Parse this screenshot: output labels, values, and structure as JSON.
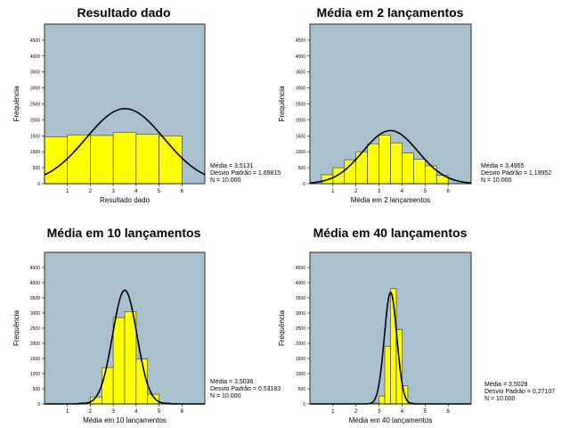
{
  "colors": {
    "plot_bg": "#a9c1cf",
    "bar_fill": "#ffff00",
    "bar_edge": "#333333",
    "curve": "#000000"
  },
  "chart_data": [
    {
      "type": "bar",
      "title": "Resultado dado",
      "xlabel": "Resultado dado",
      "ylabel": "Frequência",
      "ylim": [
        0,
        5000
      ],
      "yticks": [
        "0",
        "500",
        "1000",
        "1500",
        "2000",
        "2500",
        "3000",
        "3500",
        "4000",
        "4500"
      ],
      "xlim": [
        0,
        7
      ],
      "xticks": [
        "1",
        "2",
        "3",
        "4",
        "5",
        "6"
      ],
      "bins": [
        {
          "x0": 0.0,
          "x1": 1.0,
          "value": 1470
        },
        {
          "x0": 1.0,
          "x1": 2.0,
          "value": 1530
        },
        {
          "x0": 2.0,
          "x1": 3.0,
          "value": 1510
        },
        {
          "x0": 3.0,
          "x1": 4.0,
          "value": 1610
        },
        {
          "x0": 4.0,
          "x1": 5.0,
          "value": 1550
        },
        {
          "x0": 5.0,
          "x1": 6.0,
          "value": 1500
        }
      ],
      "normal_curve": {
        "mean": 3.5131,
        "sd": 1.69815
      },
      "stats": [
        "Média = 3,5131",
        "Desvio Padrão = 1,69815",
        "N = 10.000"
      ]
    },
    {
      "type": "bar",
      "title": "Média em 2 lançamentos",
      "xlabel": "Média em 2 lançamentos",
      "ylabel": "Frequência",
      "ylim": [
        0,
        5000
      ],
      "yticks": [
        "0",
        "500",
        "1000",
        "1500",
        "2000",
        "2500",
        "3000",
        "3500",
        "4000",
        "4500"
      ],
      "xlim": [
        0,
        7
      ],
      "xticks": [
        "1",
        "2",
        "3",
        "4",
        "5",
        "6"
      ],
      "bins": [
        {
          "x0": 0.5,
          "x1": 1.0,
          "value": 280
        },
        {
          "x0": 1.0,
          "x1": 1.5,
          "value": 500
        },
        {
          "x0": 1.5,
          "x1": 2.0,
          "value": 750
        },
        {
          "x0": 2.0,
          "x1": 2.5,
          "value": 1000
        },
        {
          "x0": 2.5,
          "x1": 3.0,
          "value": 1250
        },
        {
          "x0": 3.0,
          "x1": 3.5,
          "value": 1520
        },
        {
          "x0": 3.5,
          "x1": 4.0,
          "value": 1280
        },
        {
          "x0": 4.0,
          "x1": 4.5,
          "value": 960
        },
        {
          "x0": 4.5,
          "x1": 5.0,
          "value": 760
        },
        {
          "x0": 5.0,
          "x1": 5.5,
          "value": 560
        },
        {
          "x0": 5.5,
          "x1": 6.0,
          "value": 260
        }
      ],
      "normal_curve": {
        "mean": 3.4955,
        "sd": 1.19952
      },
      "stats": [
        "Média = 3,4955",
        "Desvio Padrão = 1,19952",
        "N = 10.000"
      ]
    },
    {
      "type": "bar",
      "title": "Média em 10 lançamentos",
      "xlabel": "Média em 10 lançamentos",
      "ylabel": "Frequência",
      "ylim": [
        0,
        5000
      ],
      "yticks": [
        "0",
        "500",
        "1000",
        "1500",
        "2000",
        "2500",
        "3000",
        "3500",
        "4000",
        "4500"
      ],
      "xlim": [
        0,
        7
      ],
      "xticks": [
        "1",
        "2",
        "3",
        "4",
        "5",
        "6"
      ],
      "bins": [
        {
          "x0": 1.5,
          "x1": 2.0,
          "value": 40
        },
        {
          "x0": 2.0,
          "x1": 2.5,
          "value": 230
        },
        {
          "x0": 2.5,
          "x1": 3.0,
          "value": 1200
        },
        {
          "x0": 3.0,
          "x1": 3.5,
          "value": 2850
        },
        {
          "x0": 3.5,
          "x1": 4.0,
          "value": 3050
        },
        {
          "x0": 4.0,
          "x1": 4.5,
          "value": 1480
        },
        {
          "x0": 4.5,
          "x1": 5.0,
          "value": 320
        },
        {
          "x0": 5.0,
          "x1": 5.5,
          "value": 40
        }
      ],
      "normal_curve": {
        "mean": 3.5036,
        "sd": 0.53183
      },
      "stats": [
        "Média = 3,5036",
        "Desvio Padrão = 0,53183",
        "N = 10.000"
      ]
    },
    {
      "type": "bar",
      "title": "Média em 40 lançamentos",
      "xlabel": "Média em 40 lançamentos",
      "ylabel": "Frequência",
      "ylim": [
        0,
        5000
      ],
      "yticks": [
        "0",
        "500",
        "1000",
        "1500",
        "2000",
        "2500",
        "3000",
        "3500",
        "4000",
        "4500"
      ],
      "xlim": [
        0,
        7
      ],
      "xticks": [
        "1",
        "2",
        "3",
        "4",
        "5",
        "6"
      ],
      "bins": [
        {
          "x0": 2.75,
          "x1": 3.0,
          "value": 30
        },
        {
          "x0": 3.0,
          "x1": 3.25,
          "value": 260
        },
        {
          "x0": 3.25,
          "x1": 3.5,
          "value": 1900
        },
        {
          "x0": 3.5,
          "x1": 3.75,
          "value": 3800
        },
        {
          "x0": 3.75,
          "x1": 4.0,
          "value": 2450
        },
        {
          "x0": 4.0,
          "x1": 4.25,
          "value": 600
        },
        {
          "x0": 4.25,
          "x1": 4.5,
          "value": 40
        }
      ],
      "normal_curve": {
        "mean": 3.5028,
        "sd": 0.27107
      },
      "stats": [
        "Média = 3,5028",
        "Desvio Padrão = 0,27107",
        "N = 10.000"
      ]
    }
  ]
}
